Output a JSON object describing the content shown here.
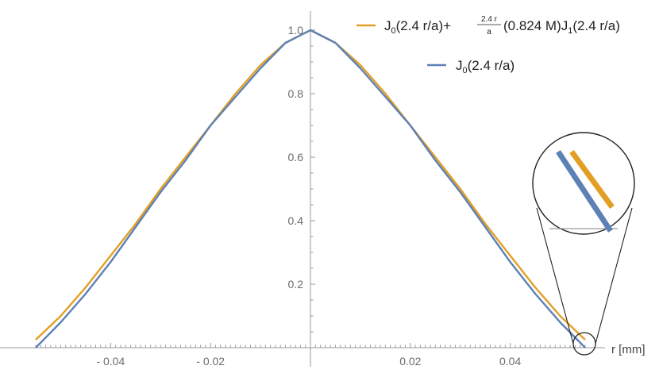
{
  "chart_data": {
    "type": "line",
    "xlabel": "r [mm]",
    "ylabel": "",
    "xlim": [
      -0.055,
      0.055
    ],
    "ylim": [
      0,
      1.0
    ],
    "x_ticks": [
      -0.04,
      -0.02,
      0.02,
      0.04
    ],
    "x_tick_labels": [
      "- 0.04",
      "- 0.02",
      "0.02",
      "0.04"
    ],
    "y_ticks": [
      0.2,
      0.4,
      0.6,
      0.8,
      1.0
    ],
    "y_tick_labels": [
      "0.2",
      "0.4",
      "0.6",
      "0.8",
      "1.0"
    ],
    "grid": false,
    "legend_position": "top-right",
    "series": [
      {
        "name_parts": {
          "base": "J",
          "sub1": "0",
          "arg1": "(2.4 r/a)+ ",
          "frac_num": "2.4 r",
          "frac_den": "a",
          "middle": "(0.824 M)J",
          "sub2": "1",
          "arg2": "(2.4 r/a)"
        },
        "color": "#E39F24",
        "x": [
          -0.055,
          -0.05,
          -0.045,
          -0.04,
          -0.035,
          -0.03,
          -0.025,
          -0.02,
          -0.015,
          -0.01,
          -0.005,
          0.0,
          0.005,
          0.01,
          0.015,
          0.02,
          0.025,
          0.03,
          0.035,
          0.04,
          0.045,
          0.05,
          0.055
        ],
        "values": [
          0.025,
          0.1,
          0.19,
          0.29,
          0.39,
          0.5,
          0.6,
          0.7,
          0.8,
          0.89,
          0.96,
          1.0,
          0.96,
          0.89,
          0.8,
          0.7,
          0.6,
          0.5,
          0.39,
          0.29,
          0.19,
          0.1,
          0.025
        ]
      },
      {
        "name_parts": {
          "base": "J",
          "sub1": "0",
          "arg1": "(2.4 r/a)"
        },
        "color": "#5E81B5",
        "x": [
          -0.055,
          -0.05,
          -0.045,
          -0.04,
          -0.035,
          -0.03,
          -0.025,
          -0.02,
          -0.015,
          -0.01,
          -0.005,
          0.0,
          0.005,
          0.01,
          0.015,
          0.02,
          0.025,
          0.03,
          0.035,
          0.04,
          0.045,
          0.05,
          0.055
        ],
        "values": [
          0.0,
          0.08,
          0.17,
          0.27,
          0.38,
          0.49,
          0.59,
          0.7,
          0.79,
          0.88,
          0.96,
          1.0,
          0.96,
          0.88,
          0.79,
          0.7,
          0.59,
          0.49,
          0.38,
          0.27,
          0.17,
          0.08,
          0.0
        ]
      }
    ]
  }
}
